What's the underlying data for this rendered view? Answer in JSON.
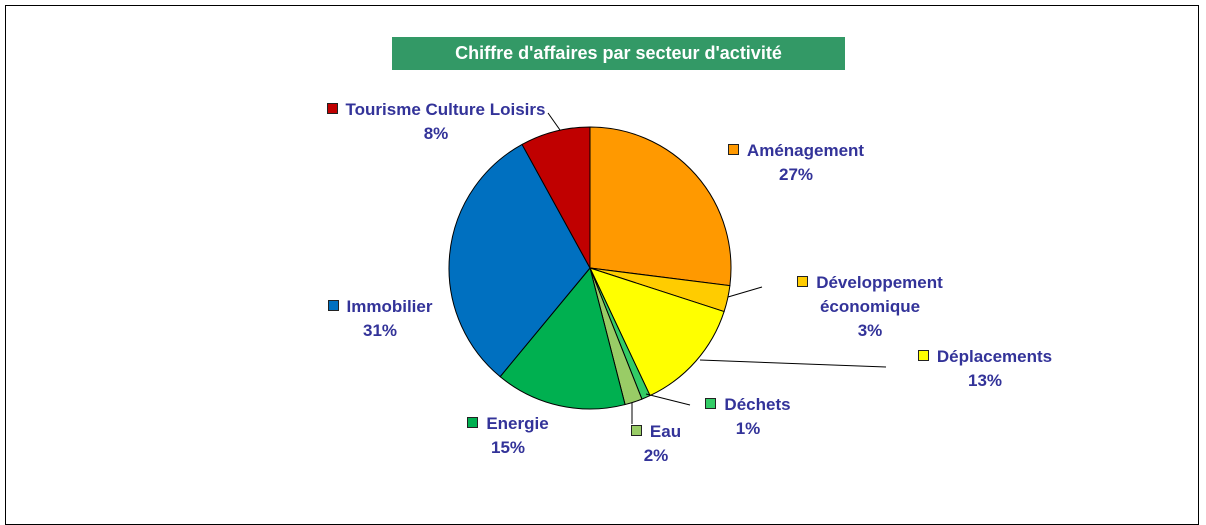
{
  "chart_data": {
    "type": "pie",
    "title": "Chiffre d'affaires par secteur d'activité",
    "categories": [
      "Aménagement",
      "Développement économique",
      "Déplacements",
      "Déchets",
      "Eau",
      "Energie",
      "Immobilier",
      "Tourisme Culture Loisirs"
    ],
    "values": [
      27,
      3,
      13,
      1,
      2,
      15,
      31,
      8
    ],
    "value_labels": [
      "27%",
      "3%",
      "13%",
      "1%",
      "2%",
      "15%",
      "31%",
      "8%"
    ],
    "colors": [
      "#ff9900",
      "#ffcc00",
      "#ffff00",
      "#33cc66",
      "#99cc66",
      "#00b050",
      "#0070c0",
      "#c00000"
    ]
  }
}
